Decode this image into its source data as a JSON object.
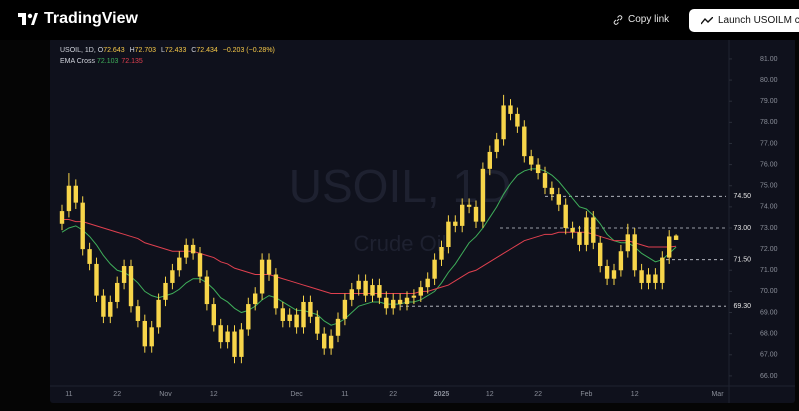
{
  "header": {
    "logo": "TradingView",
    "copy_link": "Copy link",
    "launch": "Launch USOILM chart"
  },
  "chart_data": {
    "type": "candlestick",
    "legend": {
      "symbol": "USOIL, 1D,",
      "open_label": "O",
      "high_label": "H",
      "low_label": "L",
      "close_label": "C",
      "change": "−0.203 (−0.28%)",
      "indicator": "EMA Cross"
    },
    "watermark": [
      "USOIL, 1D",
      "Crude Oil"
    ],
    "categories": [
      null,
      "11",
      null,
      null,
      null,
      null,
      null,
      null,
      "22",
      null,
      null,
      null,
      null,
      null,
      null,
      "Nov",
      null,
      null,
      null,
      null,
      null,
      null,
      "12",
      null,
      null,
      null,
      null,
      null,
      null,
      null,
      null,
      null,
      null,
      null,
      "Dec",
      null,
      null,
      null,
      null,
      null,
      null,
      "11",
      null,
      null,
      null,
      null,
      null,
      null,
      "22",
      null,
      null,
      null,
      null,
      null,
      null,
      "2025",
      null,
      null,
      null,
      null,
      null,
      null,
      "12",
      null,
      null,
      null,
      null,
      null,
      null,
      "22",
      null,
      null,
      null,
      null,
      null,
      null,
      "Feb",
      null,
      null,
      null,
      null,
      null,
      null,
      "12",
      null,
      null,
      null,
      null,
      null,
      null,
      null,
      null,
      null,
      null,
      null,
      "Mar"
    ],
    "open": [
      73.2,
      73.8,
      75.0,
      74.2,
      72.0,
      71.3,
      69.8,
      68.8,
      69.5,
      70.4,
      71.2,
      69.3,
      68.6,
      67.4,
      68.3,
      69.6,
      70.4,
      71.0,
      71.6,
      72.2,
      71.8,
      70.7,
      69.4,
      68.4,
      67.6,
      68.1,
      66.9,
      68.2,
      69.4,
      69.9,
      71.5,
      70.8,
      69.2,
      68.6,
      68.9,
      68.3,
      69.5,
      68.8,
      68.0,
      67.3,
      67.9,
      68.7,
      69.6,
      70.1,
      70.5,
      69.8,
      70.3,
      69.7,
      69.2,
      69.6,
      69.4,
      69.7,
      69.8,
      70.2,
      70.6,
      71.5,
      72.1,
      73.3,
      73.1,
      74.1,
      74.0,
      73.3,
      75.8,
      76.6,
      77.2,
      78.8,
      78.4,
      77.8,
      76.4,
      76.0,
      75.6,
      74.9,
      74.6,
      74.1,
      73.0,
      72.8,
      72.2,
      73.5,
      72.3,
      71.2,
      70.6,
      71.0,
      71.9,
      72.7,
      71.0,
      70.4,
      70.8,
      70.4,
      71.6,
      72.643,
      null,
      null,
      null,
      null,
      null,
      null
    ],
    "high": [
      74.1,
      75.6,
      75.3,
      74.5,
      72.3,
      71.6,
      70.1,
      69.8,
      70.7,
      71.5,
      71.5,
      69.6,
      68.9,
      68.6,
      69.9,
      70.7,
      71.3,
      71.9,
      72.5,
      72.5,
      72.1,
      71.0,
      69.7,
      68.7,
      68.4,
      68.4,
      68.5,
      69.7,
      70.2,
      71.8,
      71.8,
      71.1,
      69.5,
      69.2,
      69.2,
      69.8,
      69.8,
      69.1,
      68.3,
      68.2,
      69.0,
      69.9,
      70.4,
      70.8,
      70.8,
      70.6,
      70.6,
      70.0,
      69.9,
      69.9,
      70.0,
      70.1,
      70.5,
      70.9,
      71.8,
      72.4,
      73.6,
      73.6,
      74.4,
      74.4,
      74.3,
      76.1,
      76.9,
      77.5,
      79.3,
      79.1,
      78.7,
      78.1,
      76.7,
      76.3,
      75.9,
      75.2,
      74.9,
      74.4,
      73.3,
      73.1,
      73.8,
      73.8,
      72.6,
      71.5,
      71.3,
      72.2,
      73.2,
      73.0,
      71.3,
      71.1,
      71.1,
      71.9,
      72.9,
      72.703,
      null,
      null,
      null,
      null,
      null,
      null
    ],
    "low": [
      72.9,
      73.5,
      73.9,
      71.7,
      71.0,
      69.5,
      68.5,
      68.5,
      69.2,
      70.1,
      69.0,
      68.3,
      67.1,
      67.1,
      68.0,
      69.3,
      70.1,
      70.7,
      71.3,
      71.5,
      70.4,
      69.1,
      68.1,
      67.3,
      67.3,
      66.6,
      66.6,
      67.9,
      69.1,
      69.6,
      70.5,
      68.9,
      68.3,
      68.3,
      68.0,
      68.0,
      68.5,
      67.7,
      67.0,
      67.0,
      67.6,
      68.4,
      69.3,
      69.8,
      69.5,
      69.5,
      69.4,
      68.9,
      68.9,
      69.1,
      69.1,
      69.4,
      69.5,
      69.9,
      70.3,
      71.2,
      71.8,
      72.8,
      72.8,
      73.7,
      73.0,
      73.0,
      75.5,
      76.3,
      76.9,
      78.1,
      77.5,
      76.1,
      75.7,
      75.3,
      74.6,
      74.3,
      73.8,
      72.7,
      72.5,
      71.9,
      71.9,
      72.0,
      70.9,
      70.3,
      70.3,
      70.7,
      71.6,
      70.7,
      70.1,
      70.1,
      70.1,
      70.1,
      71.3,
      72.433,
      null,
      null,
      null,
      null,
      null,
      null
    ],
    "close": [
      73.8,
      75.0,
      74.2,
      72.0,
      71.3,
      69.8,
      68.8,
      69.5,
      70.4,
      71.2,
      69.3,
      68.6,
      67.4,
      68.3,
      69.6,
      70.4,
      71.0,
      71.6,
      72.2,
      71.8,
      70.7,
      69.4,
      68.4,
      67.6,
      68.1,
      66.9,
      68.2,
      69.4,
      69.9,
      71.5,
      70.8,
      69.2,
      68.6,
      68.9,
      68.3,
      69.5,
      68.8,
      68.0,
      67.3,
      67.9,
      68.7,
      69.6,
      70.1,
      70.5,
      69.8,
      70.3,
      69.7,
      69.2,
      69.6,
      69.4,
      69.7,
      69.8,
      70.2,
      70.6,
      71.5,
      72.1,
      73.3,
      73.1,
      74.1,
      74.0,
      73.3,
      75.8,
      76.6,
      77.2,
      78.8,
      78.4,
      77.8,
      76.4,
      76.0,
      75.6,
      74.9,
      74.6,
      74.1,
      73.0,
      72.8,
      72.2,
      73.5,
      72.3,
      71.2,
      70.6,
      71.0,
      71.9,
      72.7,
      71.0,
      70.4,
      70.8,
      70.4,
      71.6,
      72.6,
      72.434,
      null,
      null,
      null,
      null,
      null,
      null
    ],
    "color": "#f7d54a",
    "series": [
      {
        "color": "#3fae5a",
        "values": [
          72.8,
          73.0,
          73.1,
          72.9,
          72.6,
          72.2,
          71.7,
          71.3,
          71.0,
          70.9,
          70.7,
          70.4,
          70.0,
          69.8,
          69.7,
          69.8,
          69.9,
          70.1,
          70.4,
          70.6,
          70.6,
          70.4,
          70.1,
          69.7,
          69.5,
          69.2,
          69.0,
          69.1,
          69.3,
          69.6,
          69.8,
          69.7,
          69.5,
          69.3,
          69.1,
          69.1,
          69.0,
          68.9,
          68.6,
          68.4,
          68.5,
          68.7,
          69.0,
          69.3,
          69.4,
          69.5,
          69.5,
          69.4,
          69.4,
          69.4,
          69.5,
          69.5,
          69.6,
          69.8,
          70.0,
          70.4,
          70.9,
          71.3,
          71.8,
          72.3,
          72.6,
          73.0,
          73.5,
          74.0,
          74.6,
          75.1,
          75.5,
          75.7,
          75.8,
          75.8,
          75.7,
          75.5,
          75.2,
          74.8,
          74.4,
          74.0,
          73.9,
          73.6,
          73.2,
          72.7,
          72.4,
          72.3,
          72.3,
          72.1,
          71.8,
          71.6,
          71.4,
          71.5,
          71.8,
          72.103,
          null,
          null,
          null,
          null,
          null,
          null
        ]
      },
      {
        "color": "#e0404f",
        "values": [
          73.4,
          73.4,
          73.3,
          73.3,
          73.2,
          73.1,
          73.0,
          72.9,
          72.8,
          72.7,
          72.6,
          72.5,
          72.3,
          72.2,
          72.1,
          72.0,
          71.9,
          71.9,
          71.9,
          71.9,
          71.8,
          71.7,
          71.6,
          71.4,
          71.3,
          71.1,
          71.0,
          70.9,
          70.8,
          70.8,
          70.8,
          70.7,
          70.6,
          70.5,
          70.4,
          70.3,
          70.2,
          70.1,
          70.0,
          69.9,
          69.9,
          69.9,
          69.9,
          69.9,
          69.9,
          69.9,
          69.9,
          69.9,
          69.9,
          69.9,
          69.9,
          69.9,
          70.0,
          70.0,
          70.1,
          70.2,
          70.3,
          70.5,
          70.7,
          70.9,
          71.0,
          71.2,
          71.4,
          71.6,
          71.8,
          72.0,
          72.2,
          72.4,
          72.5,
          72.6,
          72.7,
          72.7,
          72.8,
          72.8,
          72.8,
          72.8,
          72.8,
          72.7,
          72.6,
          72.5,
          72.4,
          72.4,
          72.4,
          72.3,
          72.2,
          72.1,
          72.1,
          72.1,
          72.1,
          72.135,
          null,
          null,
          null,
          null,
          null,
          null
        ]
      }
    ],
    "ylim": [
      65.57,
      81.66
    ],
    "yticks": [
      {
        "value": 66,
        "label": "66.00"
      },
      {
        "value": 67,
        "label": "67.00"
      },
      {
        "value": 68,
        "label": "68.00"
      },
      {
        "value": 69,
        "label": "69.00"
      },
      {
        "value": 70,
        "label": "70.00"
      },
      {
        "value": 71,
        "label": "71.00"
      },
      {
        "value": 72,
        "label": "72.00"
      },
      {
        "value": 73,
        "label": "73.00"
      },
      {
        "value": 74,
        "label": "74.00"
      },
      {
        "value": 75,
        "label": "75.00"
      },
      {
        "value": 76,
        "label": "76.00"
      },
      {
        "value": 77,
        "label": "77.00"
      },
      {
        "value": 78,
        "label": "78.00"
      },
      {
        "value": 79,
        "label": "79.00"
      },
      {
        "value": 80,
        "label": "80.00"
      },
      {
        "value": 81,
        "label": "81.00"
      }
    ],
    "levels": [
      {
        "value": 74.5,
        "label": "74.50"
      },
      {
        "value": 73,
        "label": "73.00"
      },
      {
        "value": 71.5,
        "label": "71.50"
      },
      {
        "value": 69.3,
        "label": "69.30"
      }
    ]
  }
}
